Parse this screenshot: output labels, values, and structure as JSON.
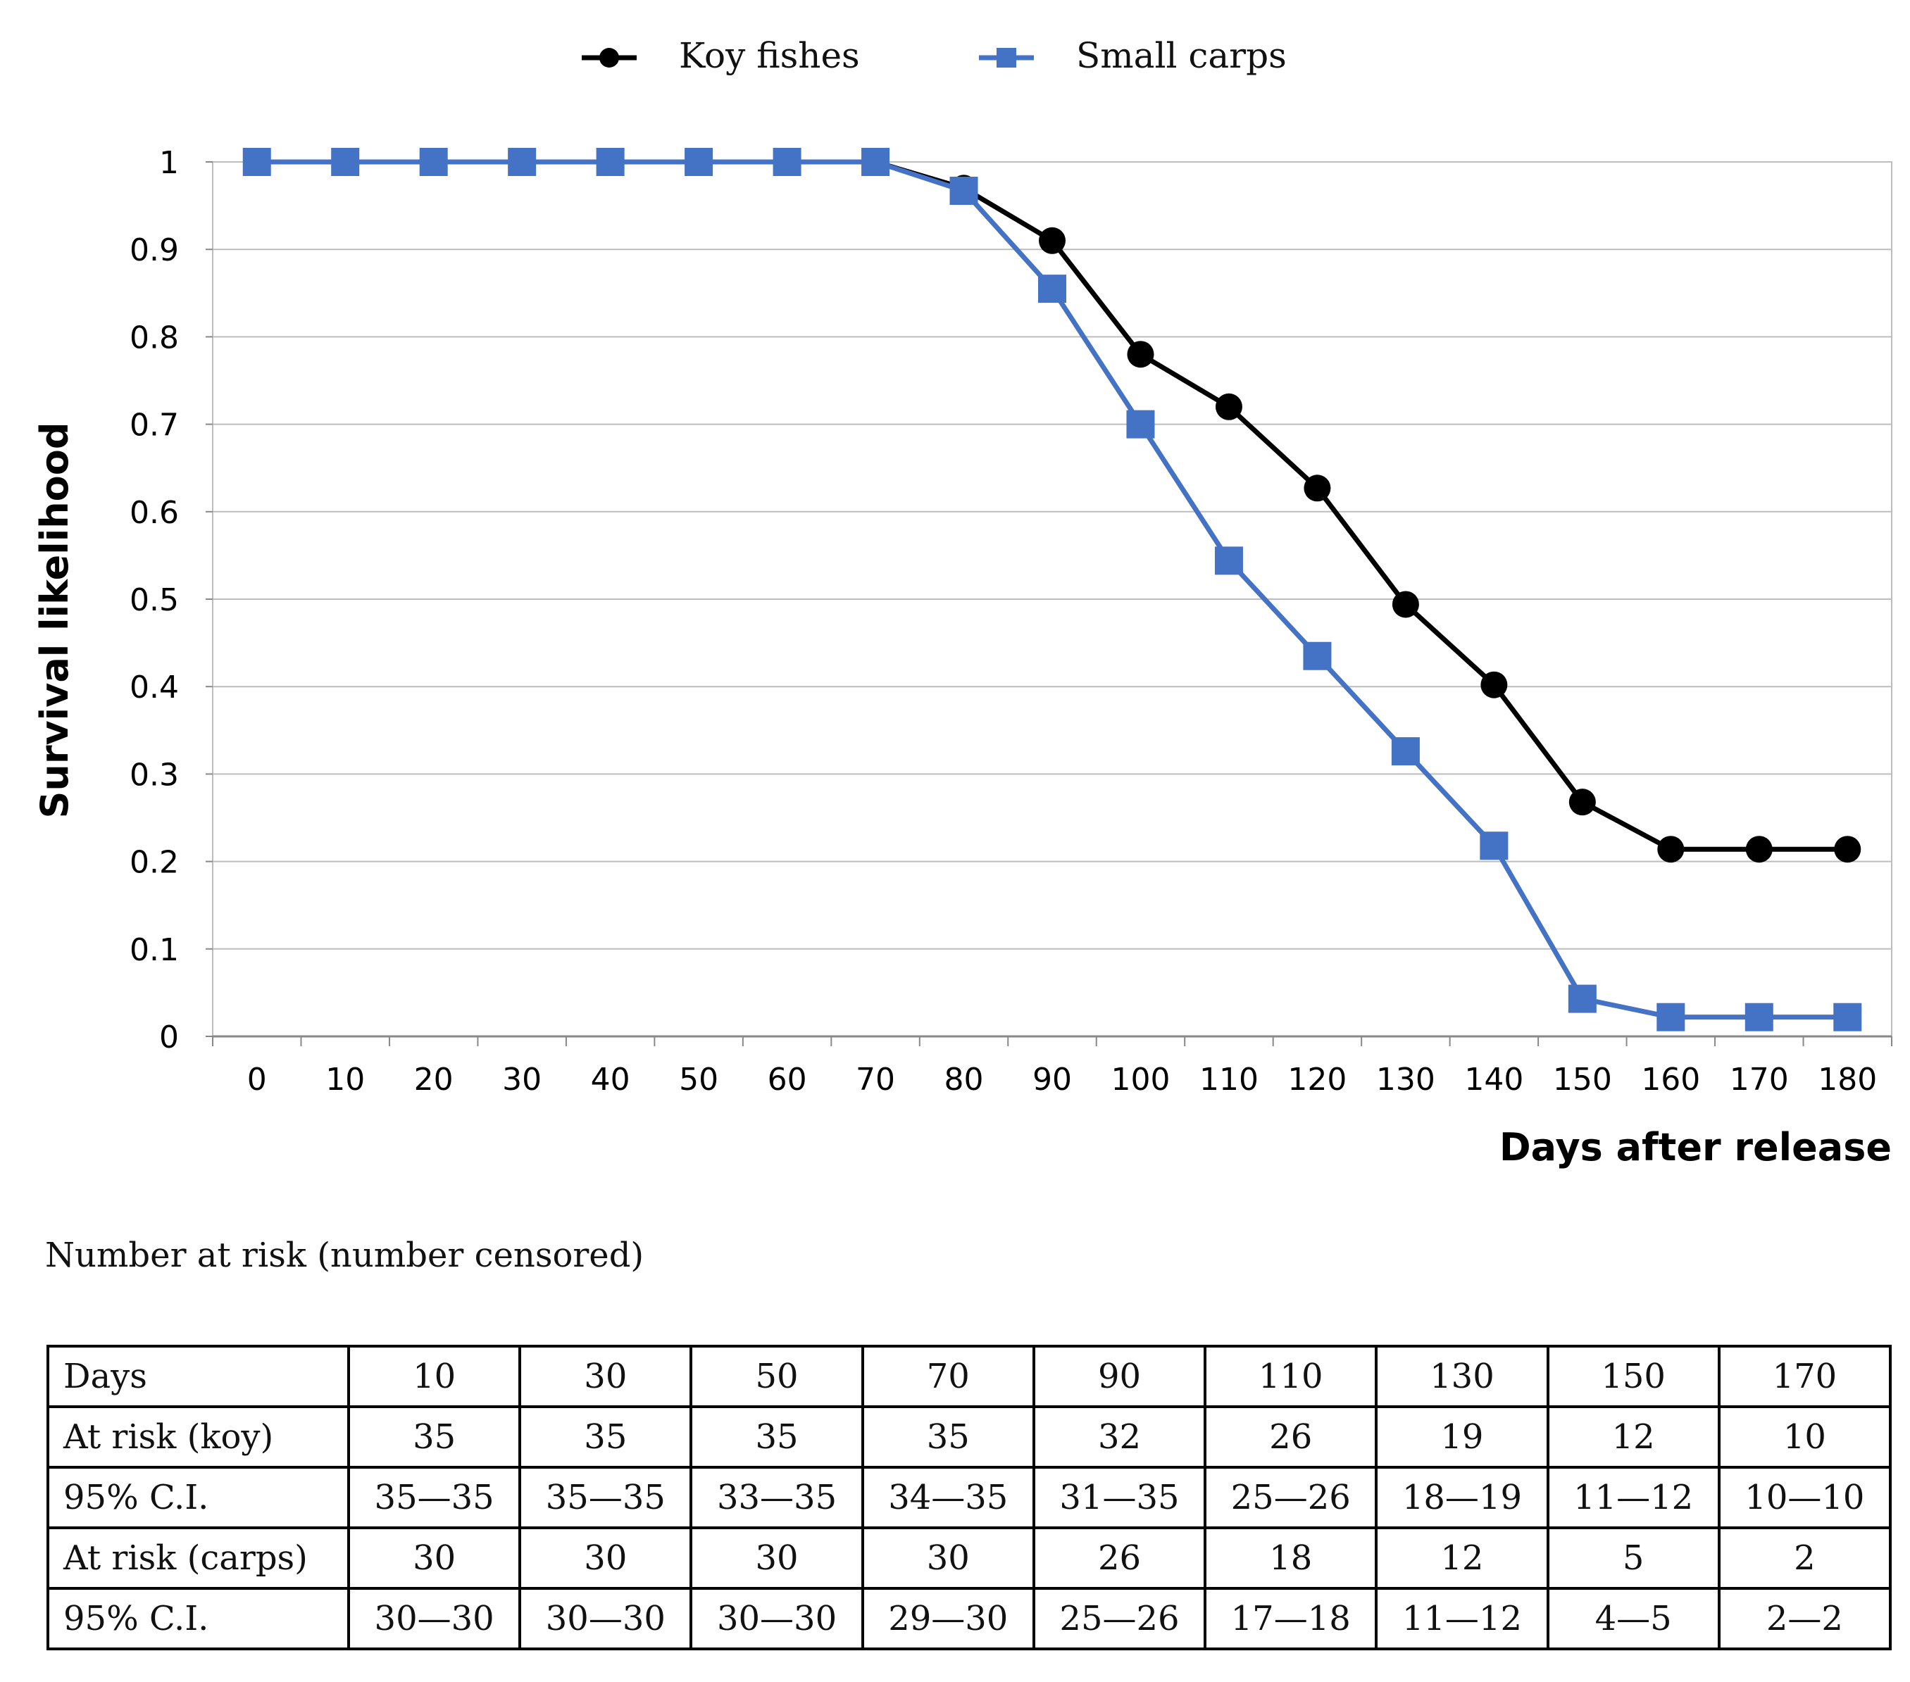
{
  "chart_data": {
    "type": "line",
    "title": "",
    "xlabel": "Days after release",
    "ylabel": "Survival likelihood",
    "xlim": [
      -5,
      185
    ],
    "ylim": [
      0,
      1
    ],
    "grid": true,
    "legend_position": "top-center",
    "x": [
      0,
      10,
      20,
      30,
      40,
      50,
      60,
      70,
      80,
      90,
      100,
      110,
      120,
      130,
      140,
      150,
      160,
      170,
      180
    ],
    "x_tick_labels": [
      "0",
      "10",
      "20",
      "30",
      "40",
      "50",
      "60",
      "70",
      "80",
      "90",
      "100",
      "110",
      "120",
      "130",
      "140",
      "150",
      "160",
      "170",
      "180"
    ],
    "y_tick_labels": [
      "0",
      "0.1",
      "0.2",
      "0.3",
      "0.4",
      "0.5",
      "0.6",
      "0.7",
      "0.8",
      "0.9",
      "1"
    ],
    "y_ticks": [
      0,
      0.1,
      0.2,
      0.3,
      0.4,
      0.5,
      0.6,
      0.7,
      0.8,
      0.9,
      1
    ],
    "series": [
      {
        "name": "Koy fishes",
        "color": "#000000",
        "marker": "circle",
        "values": [
          1,
          1,
          1,
          1,
          1,
          1,
          1,
          1,
          0.97,
          0.91,
          0.78,
          0.72,
          0.627,
          0.494,
          0.402,
          0.268,
          0.214,
          0.214,
          0.214
        ]
      },
      {
        "name": "Small carps",
        "color": "#4472C4",
        "marker": "square",
        "values": [
          1,
          1,
          1,
          1,
          1,
          1,
          1,
          1,
          0.967,
          0.855,
          0.7,
          0.544,
          0.435,
          0.326,
          0.218,
          0.043,
          0.022,
          0.022,
          0.022
        ]
      }
    ]
  },
  "risk_table": {
    "title": "Number at risk (number censored)",
    "rows": [
      [
        "Days",
        "10",
        "30",
        "50",
        "70",
        "90",
        "110",
        "130",
        "150",
        "170"
      ],
      [
        "At risk (koy)",
        "35",
        "35",
        "35",
        "35",
        "32",
        "26",
        "19",
        "12",
        "10"
      ],
      [
        "95% C.I.",
        "35—35",
        "35—35",
        "33—35",
        "34—35",
        "31—35",
        "25—26",
        "18—19",
        "11—12",
        "10—10"
      ],
      [
        "At risk (carps)",
        "30",
        "30",
        "30",
        "30",
        "26",
        "18",
        "12",
        "5",
        "2"
      ],
      [
        "95% C.I.",
        "30—30",
        "30—30",
        "30—30",
        "29—30",
        "25—26",
        "17—18",
        "11—12",
        "4—5",
        "2—2"
      ]
    ]
  }
}
